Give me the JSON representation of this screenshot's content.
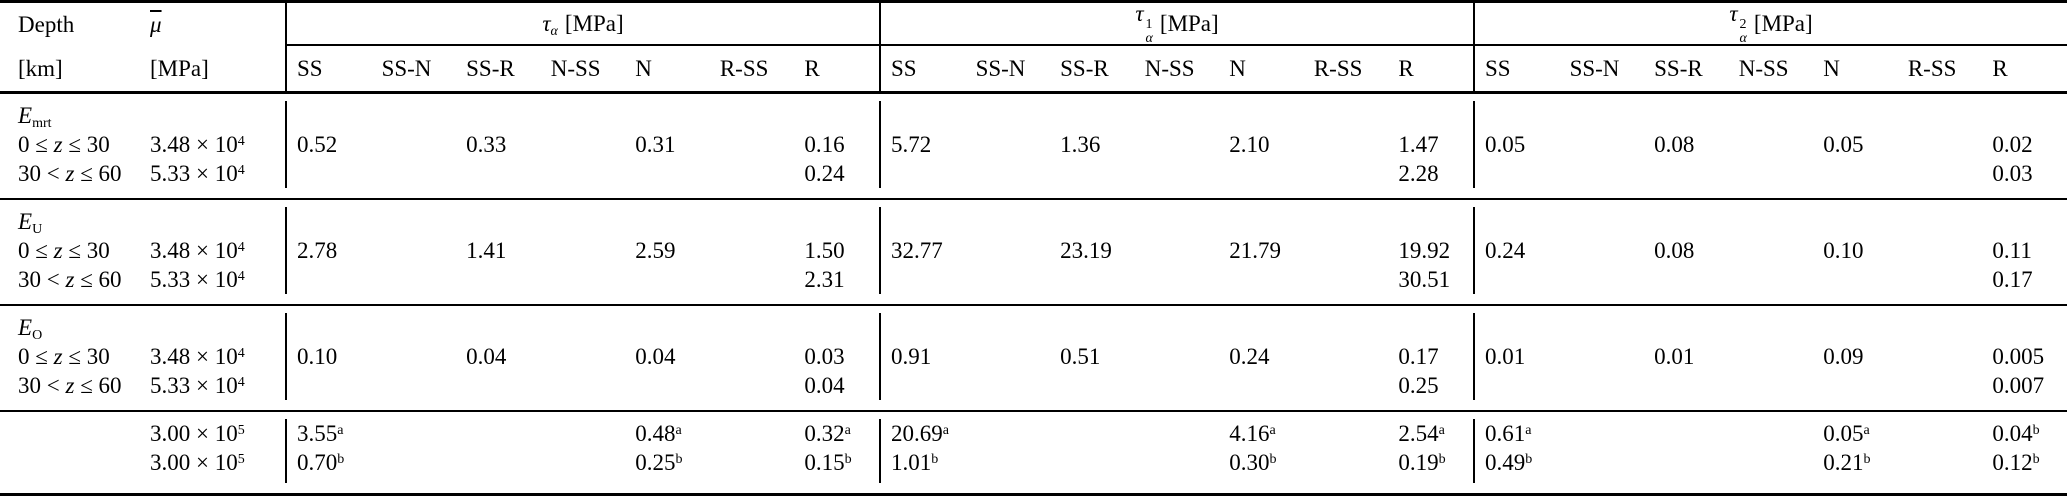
{
  "colors": {
    "background": "#ffffff",
    "text": "#000000",
    "rule": "#000000"
  },
  "table": {
    "header": {
      "col1_title": "Depth",
      "col1_unit": "[km]",
      "col2_symbol": "μ",
      "col2_unit": "[MPa]",
      "groups": [
        {
          "symbol": "τ",
          "sup": "",
          "sub": "α",
          "unit": "[MPa]"
        },
        {
          "symbol": "τ",
          "sup": "1",
          "sub": "α",
          "unit": "[MPa]"
        },
        {
          "symbol": "τ",
          "sup": "2",
          "sub": "α",
          "unit": "[MPa]"
        }
      ],
      "subcolumns": [
        "SS",
        "SS-N",
        "SS-R",
        "N-SS",
        "N",
        "R-SS",
        "R"
      ]
    },
    "blocks": [
      {
        "rows": [
          {
            "depth": {
              "label": "E",
              "labelsub": "mrt"
            },
            "mu": null,
            "groups": [
              [],
              [],
              []
            ]
          },
          {
            "depth": {
              "pre": "0 ≤ ",
              "var": "z",
              "post": " ≤ 30"
            },
            "mu": {
              "v": "3.48 × 10",
              "e": "4"
            },
            "groups": [
              [
                "0.52",
                "",
                "0.33",
                "",
                "0.31",
                "",
                "0.16"
              ],
              [
                "5.72",
                "",
                "1.36",
                "",
                "2.10",
                "",
                "1.47"
              ],
              [
                "0.05",
                "",
                "0.08",
                "",
                "0.05",
                "",
                "0.02"
              ]
            ]
          },
          {
            "depth": {
              "pre": "30 < ",
              "var": "z",
              "post": " ≤ 60"
            },
            "mu": {
              "v": "5.33 × 10",
              "e": "4"
            },
            "groups": [
              [
                "",
                "",
                "",
                "",
                "",
                "",
                "0.24"
              ],
              [
                "",
                "",
                "",
                "",
                "",
                "",
                "2.28"
              ],
              [
                "",
                "",
                "",
                "",
                "",
                "",
                "0.03"
              ]
            ]
          }
        ]
      },
      {
        "rows": [
          {
            "depth": {
              "label": "E",
              "labelsub": "U"
            },
            "mu": null,
            "groups": [
              [],
              [],
              []
            ]
          },
          {
            "depth": {
              "pre": "0 ≤ ",
              "var": "z",
              "post": " ≤ 30"
            },
            "mu": {
              "v": "3.48 × 10",
              "e": "4"
            },
            "groups": [
              [
                "2.78",
                "",
                "1.41",
                "",
                "2.59",
                "",
                "1.50"
              ],
              [
                "32.77",
                "",
                "23.19",
                "",
                "21.79",
                "",
                "19.92"
              ],
              [
                "0.24",
                "",
                "0.08",
                "",
                "0.10",
                "",
                "0.11"
              ]
            ]
          },
          {
            "depth": {
              "pre": "30 < ",
              "var": "z",
              "post": " ≤ 60"
            },
            "mu": {
              "v": "5.33 × 10",
              "e": "4"
            },
            "groups": [
              [
                "",
                "",
                "",
                "",
                "",
                "",
                "2.31"
              ],
              [
                "",
                "",
                "",
                "",
                "",
                "",
                "30.51"
              ],
              [
                "",
                "",
                "",
                "",
                "",
                "",
                "0.17"
              ]
            ]
          }
        ]
      },
      {
        "rows": [
          {
            "depth": {
              "label": "E",
              "labelsub": "O"
            },
            "mu": null,
            "groups": [
              [],
              [],
              []
            ]
          },
          {
            "depth": {
              "pre": "0 ≤ ",
              "var": "z",
              "post": " ≤ 30"
            },
            "mu": {
              "v": "3.48 × 10",
              "e": "4"
            },
            "groups": [
              [
                "0.10",
                "",
                "0.04",
                "",
                "0.04",
                "",
                "0.03"
              ],
              [
                "0.91",
                "",
                "0.51",
                "",
                "0.24",
                "",
                "0.17"
              ],
              [
                "0.01",
                "",
                "0.01",
                "",
                "0.09",
                "",
                "0.005"
              ]
            ]
          },
          {
            "depth": {
              "pre": "30 < ",
              "var": "z",
              "post": " ≤ 60"
            },
            "mu": {
              "v": "5.33 × 10",
              "e": "4"
            },
            "groups": [
              [
                "",
                "",
                "",
                "",
                "",
                "",
                "0.04"
              ],
              [
                "",
                "",
                "",
                "",
                "",
                "",
                "0.25"
              ],
              [
                "",
                "",
                "",
                "",
                "",
                "",
                "0.007"
              ]
            ]
          }
        ]
      },
      {
        "rows": [
          {
            "depth": null,
            "mu": {
              "v": "3.00 × 10",
              "e": "5"
            },
            "groups": [
              [
                {
                  "v": "3.55",
                  "s": "a"
                },
                "",
                "",
                "",
                {
                  "v": "0.48",
                  "s": "a"
                },
                "",
                {
                  "v": "0.32",
                  "s": "a"
                }
              ],
              [
                {
                  "v": "20.69",
                  "s": "a"
                },
                "",
                "",
                "",
                {
                  "v": "4.16",
                  "s": "a"
                },
                "",
                {
                  "v": "2.54",
                  "s": "a"
                }
              ],
              [
                {
                  "v": "0.61",
                  "s": "a"
                },
                "",
                "",
                "",
                {
                  "v": "0.05",
                  "s": "a"
                },
                "",
                {
                  "v": "0.04",
                  "s": "b"
                }
              ]
            ]
          },
          {
            "depth": null,
            "mu": {
              "v": "3.00 × 10",
              "e": "5"
            },
            "groups": [
              [
                {
                  "v": "0.70",
                  "s": "b"
                },
                "",
                "",
                "",
                {
                  "v": "0.25",
                  "s": "b"
                },
                "",
                {
                  "v": "0.15",
                  "s": "b"
                }
              ],
              [
                {
                  "v": "1.01",
                  "s": "b"
                },
                "",
                "",
                "",
                {
                  "v": "0.30",
                  "s": "b"
                },
                "",
                {
                  "v": "0.19",
                  "s": "b"
                }
              ],
              [
                {
                  "v": "0.49",
                  "s": "b"
                },
                "",
                "",
                "",
                {
                  "v": "0.21",
                  "s": "b"
                },
                "",
                {
                  "v": "0.12",
                  "s": "b"
                }
              ]
            ]
          }
        ]
      }
    ]
  }
}
